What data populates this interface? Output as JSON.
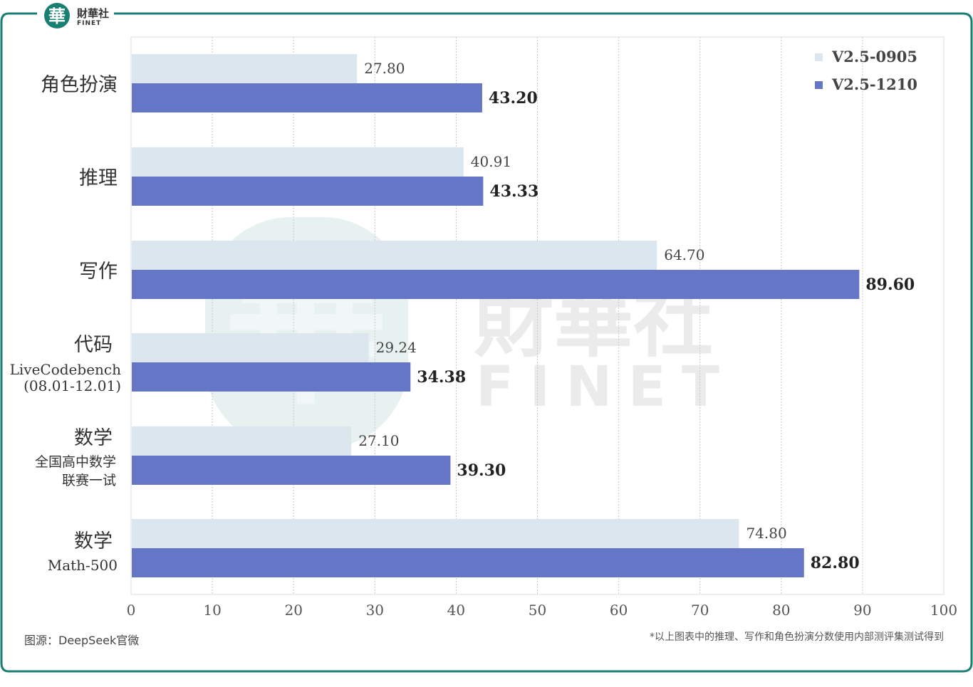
{
  "brand": {
    "logo_char": "華",
    "name_cn": "財華社",
    "name_en": "FINET"
  },
  "footer": {
    "source": "图源：DeepSeek官微",
    "note": "*以上图表中的推理、写作和角色扮演分数使用内部测评集测试得到"
  },
  "colors": {
    "frame": "#1a7f73",
    "series_a": "#dce6ef",
    "series_b": "#6576c6",
    "grid": "#c8c8c8"
  },
  "chart_data": {
    "type": "bar",
    "orientation": "horizontal",
    "categories": [
      {
        "label": "角色扮演",
        "sub": []
      },
      {
        "label": "推理",
        "sub": []
      },
      {
        "label": "写作",
        "sub": []
      },
      {
        "label": "代码",
        "sub": [
          "LiveCodebench",
          "(08.01-12.01)"
        ]
      },
      {
        "label": "数学",
        "sub": [
          "全国高中数学",
          "联赛一试"
        ]
      },
      {
        "label": "数学",
        "sub": [
          "Math-500"
        ]
      }
    ],
    "series": [
      {
        "name": "V2.5-0905",
        "values": [
          27.8,
          40.91,
          64.7,
          29.24,
          27.1,
          74.8
        ],
        "labels": [
          "27.80",
          "40.91",
          "64.70",
          "29.24",
          "27.10",
          "74.80"
        ]
      },
      {
        "name": "V2.5-1210",
        "values": [
          43.2,
          43.33,
          89.6,
          34.38,
          39.3,
          82.8
        ],
        "labels": [
          "43.20",
          "43.33",
          "89.60",
          "34.38",
          "39.30",
          "82.80"
        ]
      }
    ],
    "xlim": [
      0,
      100
    ],
    "xticks": [
      "0",
      "10",
      "20",
      "30",
      "40",
      "50",
      "60",
      "70",
      "80",
      "90",
      "100"
    ],
    "grid": true,
    "legend_position": "top-right"
  }
}
